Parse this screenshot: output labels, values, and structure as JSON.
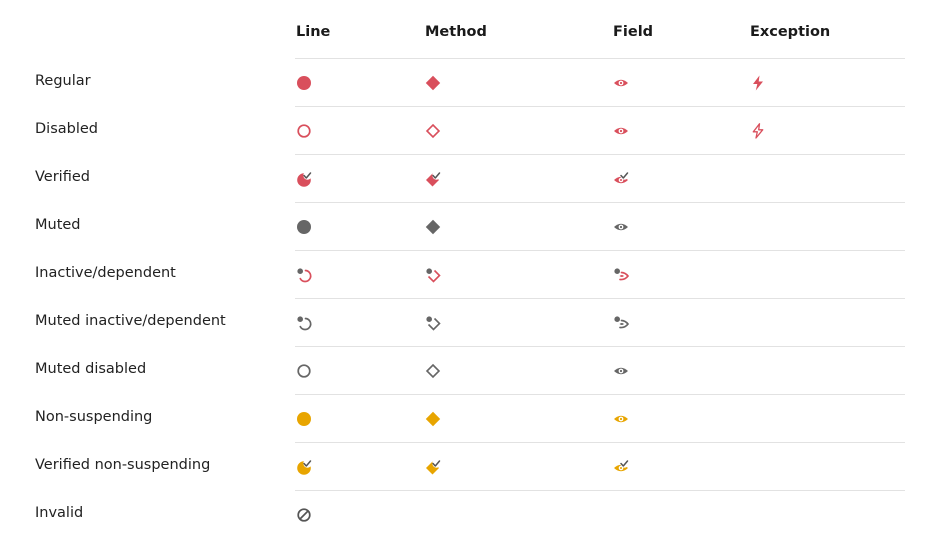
{
  "columns": [
    "Line",
    "Method",
    "Field",
    "Exception"
  ],
  "rows": [
    {
      "label": "Regular",
      "icons": {
        "line": "filled-circle-icon",
        "method": "filled-diamond-icon",
        "field": "eye-icon",
        "exception": "lightning-icon"
      },
      "color": "#d94f5c"
    },
    {
      "label": "Disabled",
      "icons": {
        "line": "hollow-circle-icon",
        "method": "hollow-diamond-icon",
        "field": "eye-icon",
        "exception": "lightning-outline-icon"
      },
      "color": "#d94f5c"
    },
    {
      "label": "Verified",
      "icons": {
        "line": "verified-circle-icon",
        "method": "verified-diamond-icon",
        "field": "verified-eye-icon"
      },
      "color": "#d94f5c"
    },
    {
      "label": "Muted",
      "icons": {
        "line": "filled-circle-icon",
        "method": "filled-diamond-icon",
        "field": "eye-icon"
      },
      "color": "#666666"
    },
    {
      "label": "Inactive/dependent",
      "icons": {
        "line": "inactive-circle-icon",
        "method": "inactive-diamond-icon",
        "field": "inactive-eye-icon"
      },
      "color": "#d94f5c"
    },
    {
      "label": "Muted inactive/dependent",
      "icons": {
        "line": "inactive-circle-icon",
        "method": "inactive-diamond-icon",
        "field": "inactive-eye-icon"
      },
      "color": "#666666"
    },
    {
      "label": "Muted disabled",
      "icons": {
        "line": "hollow-circle-icon",
        "method": "hollow-diamond-icon",
        "field": "eye-icon"
      },
      "color": "#666666"
    },
    {
      "label": "Non-suspending",
      "icons": {
        "line": "filled-circle-icon",
        "method": "filled-diamond-icon",
        "field": "eye-icon"
      },
      "color": "#e8a500"
    },
    {
      "label": "Verified non-suspending",
      "icons": {
        "line": "verified-circle-icon",
        "method": "verified-diamond-icon",
        "field": "verified-eye-icon"
      },
      "color": "#e8a500"
    },
    {
      "label": "Invalid",
      "icons": {
        "line": "invalid-icon"
      },
      "color": "#555555"
    }
  ]
}
